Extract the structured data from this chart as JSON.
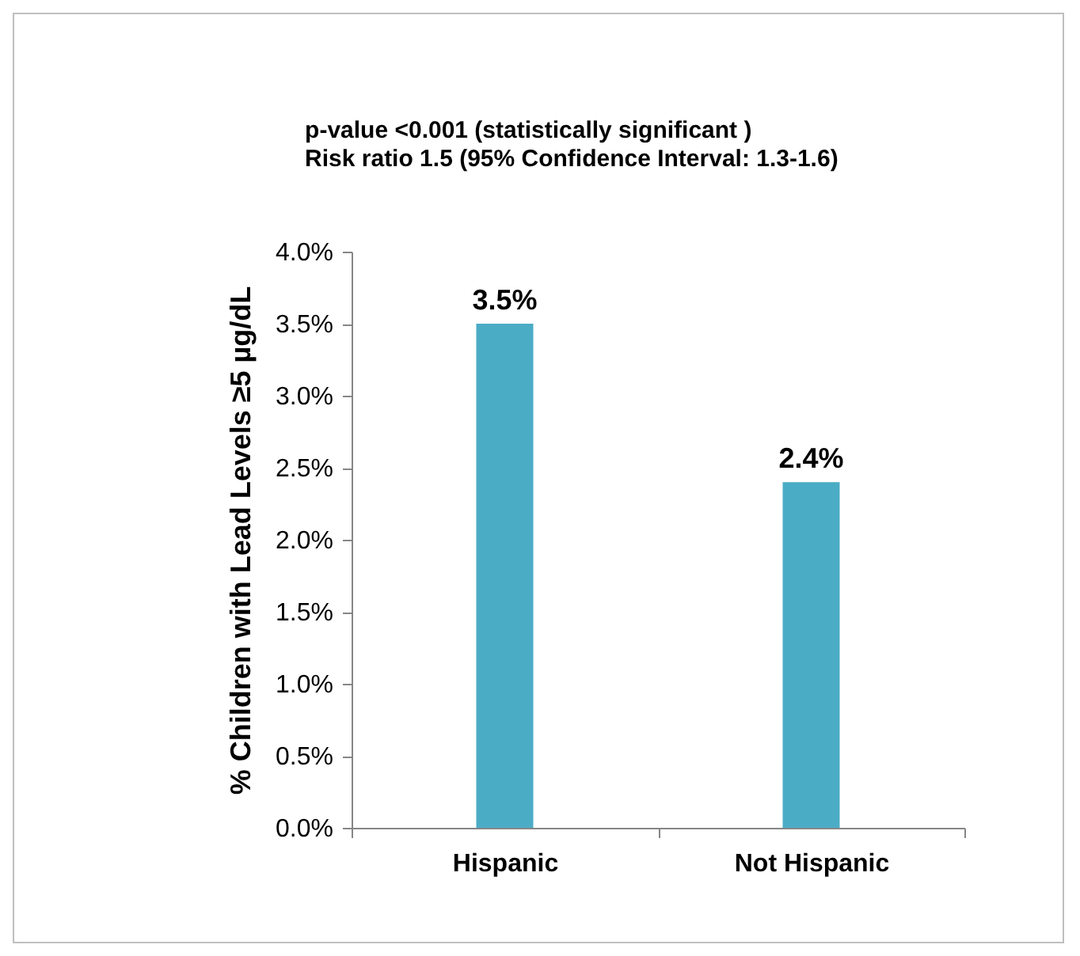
{
  "chart_data": {
    "type": "bar",
    "title": "p-value <0.001 (statistically significant )",
    "subtitle": "Risk ratio 1.5 (95% Confidence Interval: 1.3-1.6)",
    "ylabel": "% Children with Lead Levels ≥5 µg/dL",
    "categories": [
      "Hispanic",
      "Not Hispanic"
    ],
    "series": [
      {
        "color": "#4bacc6",
        "values": [
          3.5,
          2.4
        ],
        "value_labels": [
          "3.5%",
          "2.4%"
        ]
      }
    ],
    "ylim": [
      0,
      4
    ],
    "yticks": [
      {
        "value": 0,
        "label": "0.0%"
      },
      {
        "value": 0.5,
        "label": "0.5%"
      },
      {
        "value": 1,
        "label": "1.0%"
      },
      {
        "value": 1.5,
        "label": "1.5%"
      },
      {
        "value": 2,
        "label": "2.0%"
      },
      {
        "value": 2.5,
        "label": "2.5%"
      },
      {
        "value": 3,
        "label": "3.0%"
      },
      {
        "value": 3.5,
        "label": "3.5%"
      },
      {
        "value": 4,
        "label": "4.0%"
      }
    ],
    "grid": false,
    "legend": false
  }
}
